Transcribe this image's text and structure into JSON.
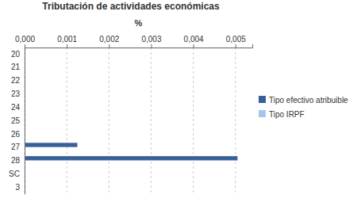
{
  "chart_data": {
    "type": "bar",
    "orientation": "horizontal",
    "title": "Tributación de actividades económicas",
    "x_label": "%",
    "categories": [
      "20",
      "21",
      "22",
      "23",
      "24",
      "25",
      "26",
      "27",
      "28",
      "SC",
      "3"
    ],
    "series": [
      {
        "name": "Tipo efectivo atribuible",
        "color": "#36609a",
        "values": [
          0,
          0,
          0,
          0,
          0,
          0,
          0,
          0.00125,
          0.00505,
          0,
          0
        ]
      },
      {
        "name": "Tipo IRPF",
        "color": "#a9c4ea",
        "values": [
          0,
          0,
          0,
          0,
          0,
          0,
          0,
          0,
          0,
          0,
          0
        ]
      }
    ],
    "xlim": [
      0,
      0.0054
    ],
    "xticks": [
      {
        "value": 0,
        "label": "0,000"
      },
      {
        "value": 0.001,
        "label": "0,001"
      },
      {
        "value": 0.002,
        "label": "0,002"
      },
      {
        "value": 0.003,
        "label": "0,003"
      },
      {
        "value": 0.004,
        "label": "0,004"
      },
      {
        "value": 0.005,
        "label": "0,005"
      }
    ],
    "grid": true,
    "legend": "right"
  }
}
